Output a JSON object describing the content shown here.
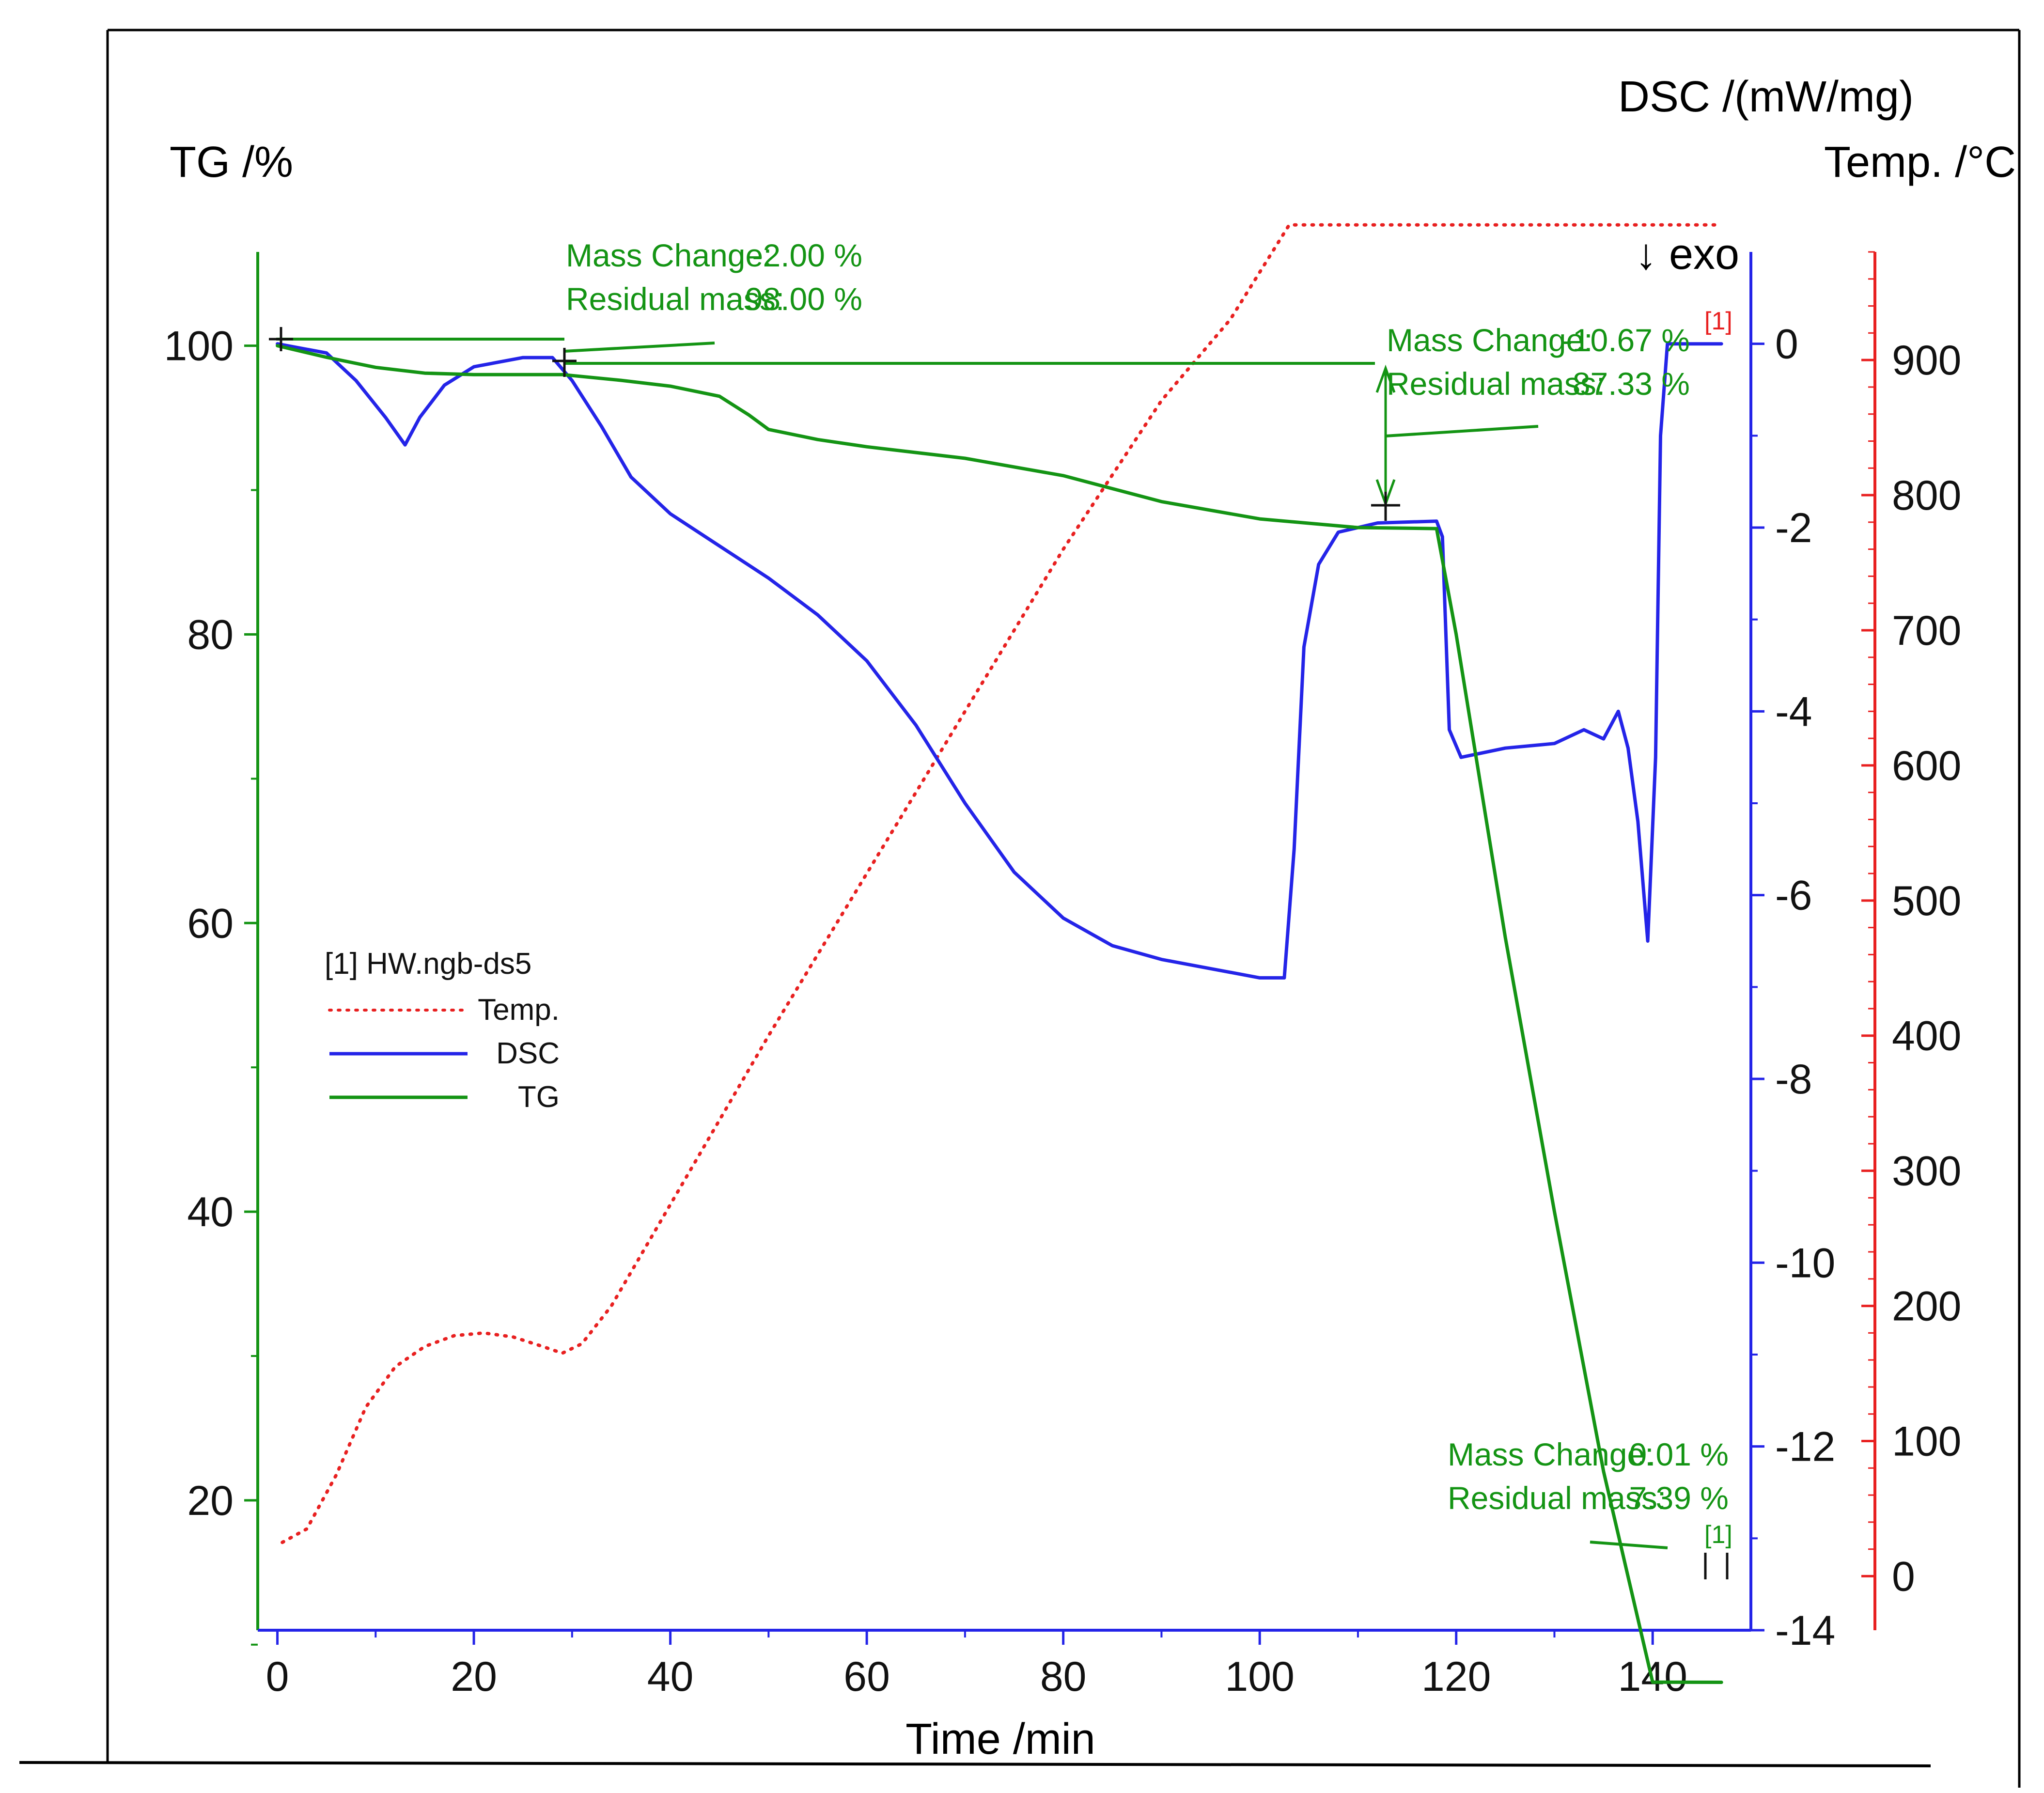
{
  "chart_data": {
    "type": "line",
    "sample": "[1]  HW.ngb-ds5",
    "x_axis": {
      "label": "Time /min",
      "range": [
        -2,
        150
      ],
      "ticks": [
        0,
        20,
        40,
        60,
        80,
        100,
        120,
        140
      ],
      "tick_labels": [
        "0",
        "20",
        "40",
        "60",
        "80",
        "100",
        "120",
        "140"
      ]
    },
    "axes": {
      "tg": {
        "label": "TG /%",
        "range": [
          11,
          106.5
        ],
        "ticks": [
          20,
          40,
          60,
          80,
          100
        ],
        "tick_labels": [
          "20",
          "40",
          "60",
          "80",
          "100"
        ],
        "color": "#149414"
      },
      "dsc": {
        "label": "DSC /(mW/mg)",
        "range": [
          -14,
          1
        ],
        "ticks": [
          0,
          -2,
          -4,
          -6,
          -8,
          -10,
          -12,
          -14
        ],
        "tick_labels": [
          "0",
          "-2",
          "-4",
          "-6",
          "-8",
          "-10",
          "-12",
          "-14"
        ],
        "color": "#2424e8"
      },
      "temp": {
        "label": "Temp. /°C",
        "range": [
          -40,
          980
        ],
        "ticks": [
          0,
          100,
          200,
          300,
          400,
          500,
          600,
          700,
          800,
          900
        ],
        "tick_labels": [
          "0",
          "100",
          "200",
          "300",
          "400",
          "500",
          "600",
          "700",
          "800",
          "900"
        ],
        "color": "#e82020"
      }
    },
    "exo_label": "↓ exo",
    "curve_tag": "[1]",
    "series": [
      {
        "name": "Temp.",
        "axis": "temp",
        "color": "#e82020",
        "style": "dotted",
        "points": [
          [
            0.5,
            25
          ],
          [
            3,
            35
          ],
          [
            6,
            75
          ],
          [
            9,
            125
          ],
          [
            12,
            155
          ],
          [
            15,
            170
          ],
          [
            18,
            178
          ],
          [
            21,
            180
          ],
          [
            24,
            177
          ],
          [
            27,
            170
          ],
          [
            29,
            165
          ],
          [
            31,
            172
          ],
          [
            34,
            200
          ],
          [
            40,
            275
          ],
          [
            50,
            400
          ],
          [
            60,
            520
          ],
          [
            70,
            640
          ],
          [
            80,
            760
          ],
          [
            90,
            870
          ],
          [
            97,
            930
          ],
          [
            103,
            1000
          ],
          [
            115,
            1000
          ],
          [
            130,
            1000
          ],
          [
            147,
            1000
          ]
        ]
      },
      {
        "name": "DSC",
        "axis": "dsc",
        "color": "#2424e8",
        "style": "solid",
        "points": [
          [
            0,
            0
          ],
          [
            5,
            -0.1
          ],
          [
            8,
            -0.4
          ],
          [
            11,
            -0.8
          ],
          [
            13,
            -1.1
          ],
          [
            14.5,
            -0.8
          ],
          [
            17,
            -0.45
          ],
          [
            20,
            -0.25
          ],
          [
            25,
            -0.15
          ],
          [
            28,
            -0.15
          ],
          [
            30,
            -0.4
          ],
          [
            33,
            -0.9
          ],
          [
            36,
            -1.45
          ],
          [
            40,
            -1.85
          ],
          [
            45,
            -2.2
          ],
          [
            50,
            -2.55
          ],
          [
            55,
            -2.95
          ],
          [
            60,
            -3.45
          ],
          [
            65,
            -4.15
          ],
          [
            70,
            -5.0
          ],
          [
            75,
            -5.75
          ],
          [
            80,
            -6.25
          ],
          [
            85,
            -6.55
          ],
          [
            90,
            -6.7
          ],
          [
            95,
            -6.8
          ],
          [
            100,
            -6.9
          ],
          [
            102.5,
            -6.9
          ],
          [
            103.5,
            -5.5
          ],
          [
            104.5,
            -3.3
          ],
          [
            106,
            -2.4
          ],
          [
            108,
            -2.05
          ],
          [
            112,
            -1.95
          ],
          [
            118,
            -1.93
          ],
          [
            118.6,
            -2.1
          ],
          [
            119.3,
            -4.2
          ],
          [
            120.5,
            -4.5
          ],
          [
            125,
            -4.4
          ],
          [
            130,
            -4.35
          ],
          [
            133,
            -4.2
          ],
          [
            135,
            -4.3
          ],
          [
            136.5,
            -4.0
          ],
          [
            137.5,
            -4.4
          ],
          [
            138.5,
            -5.2
          ],
          [
            139.5,
            -6.5
          ],
          [
            140.3,
            -4.5
          ],
          [
            140.8,
            -1.0
          ],
          [
            141.5,
            0
          ],
          [
            147,
            0
          ]
        ]
      },
      {
        "name": "TG",
        "axis": "tg",
        "color": "#149414",
        "style": "solid",
        "points": [
          [
            0,
            100
          ],
          [
            5,
            99.2
          ],
          [
            10,
            98.5
          ],
          [
            15,
            98.1
          ],
          [
            20,
            98.0
          ],
          [
            25,
            98.0
          ],
          [
            29,
            98.0
          ],
          [
            35,
            97.6
          ],
          [
            40,
            97.2
          ],
          [
            45,
            96.5
          ],
          [
            48,
            95.2
          ],
          [
            50,
            94.2
          ],
          [
            55,
            93.5
          ],
          [
            60,
            93.0
          ],
          [
            70,
            92.2
          ],
          [
            80,
            91.0
          ],
          [
            90,
            89.2
          ],
          [
            100,
            88.0
          ],
          [
            110,
            87.4
          ],
          [
            118,
            87.33
          ],
          [
            120,
            80
          ],
          [
            125,
            59
          ],
          [
            130,
            40
          ],
          [
            135,
            22
          ],
          [
            140,
            7.4
          ],
          [
            147,
            7.39
          ]
        ]
      }
    ],
    "annotations": [
      {
        "line1_label": "Mass Change:",
        "line1_value": "-2.00 %",
        "line2_label": "Residual mass:",
        "line2_value": "98.00 %"
      },
      {
        "line1_label": "Mass Change:",
        "line1_value": "-10.67 %",
        "line2_label": "Residual mass:",
        "line2_value": "87.33 %"
      },
      {
        "line1_label": "Mass Change:",
        "line1_value": "0.01 %",
        "line2_label": "Residual mass:",
        "line2_value": "7.39 %"
      }
    ],
    "legend": {
      "title": "[1]  HW.ngb-ds5",
      "entries": [
        "Temp.",
        "DSC",
        "TG"
      ]
    }
  }
}
